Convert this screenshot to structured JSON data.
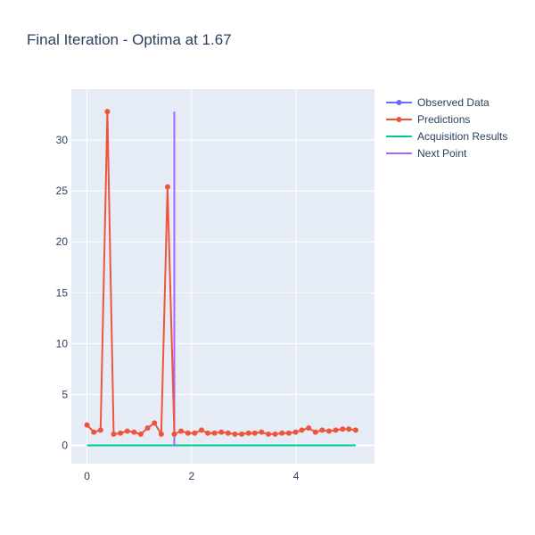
{
  "chart_data": {
    "type": "line",
    "title": "Final Iteration - Optima at 1.67",
    "xlabel": "",
    "ylabel": "",
    "xlim": [
      -0.3,
      5.5
    ],
    "ylim": [
      -1.8,
      35
    ],
    "x_ticks": [
      0,
      2,
      4
    ],
    "y_ticks": [
      0,
      5,
      10,
      15,
      20,
      25,
      30
    ],
    "grid": true,
    "legend_position": "top-right",
    "series": [
      {
        "name": "Observed Data",
        "color": "#636efa",
        "mode": "lines+markers",
        "x": [],
        "y": []
      },
      {
        "name": "Predictions",
        "color": "#ef553b",
        "mode": "lines+markers",
        "x": [
          0.0,
          0.13,
          0.26,
          0.39,
          0.51,
          0.64,
          0.77,
          0.9,
          1.03,
          1.16,
          1.29,
          1.42,
          1.54,
          1.67,
          1.8,
          1.93,
          2.06,
          2.19,
          2.31,
          2.44,
          2.57,
          2.7,
          2.83,
          2.96,
          3.09,
          3.21,
          3.34,
          3.47,
          3.6,
          3.73,
          3.86,
          3.99,
          4.11,
          4.24,
          4.37,
          4.5,
          4.63,
          4.76,
          4.89,
          5.01,
          5.14
        ],
        "y": [
          2.0,
          1.3,
          1.5,
          32.8,
          1.1,
          1.2,
          1.4,
          1.3,
          1.1,
          1.7,
          2.2,
          1.1,
          25.4,
          1.1,
          1.4,
          1.2,
          1.2,
          1.5,
          1.2,
          1.2,
          1.3,
          1.2,
          1.1,
          1.1,
          1.2,
          1.2,
          1.3,
          1.1,
          1.1,
          1.2,
          1.2,
          1.3,
          1.5,
          1.7,
          1.3,
          1.5,
          1.4,
          1.5,
          1.6,
          1.6,
          1.5
        ]
      },
      {
        "name": "Acquisition Results",
        "color": "#00cc96",
        "mode": "lines",
        "x": [
          0.0,
          5.14
        ],
        "y": [
          0.0,
          0.0
        ]
      },
      {
        "name": "Next Point",
        "color": "#ab63fa",
        "mode": "lines",
        "x": [
          1.67,
          1.67
        ],
        "y": [
          0.0,
          32.8
        ]
      }
    ]
  }
}
